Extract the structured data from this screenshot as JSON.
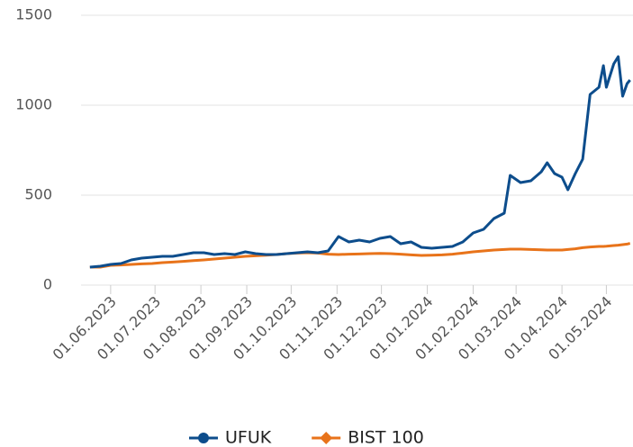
{
  "chart_data": {
    "type": "line",
    "x": [
      "2023-05-18",
      "2023-05-25",
      "2023-06-01",
      "2023-06-08",
      "2023-06-15",
      "2023-06-22",
      "2023-06-29",
      "2023-07-06",
      "2023-07-13",
      "2023-07-20",
      "2023-07-27",
      "2023-08-03",
      "2023-08-10",
      "2023-08-17",
      "2023-08-24",
      "2023-08-31",
      "2023-09-07",
      "2023-09-14",
      "2023-09-21",
      "2023-09-28",
      "2023-10-05",
      "2023-10-12",
      "2023-10-19",
      "2023-10-26",
      "2023-11-02",
      "2023-11-09",
      "2023-11-16",
      "2023-11-23",
      "2023-11-30",
      "2023-12-07",
      "2023-12-14",
      "2023-12-21",
      "2023-12-28",
      "2024-01-04",
      "2024-01-11",
      "2024-01-18",
      "2024-01-25",
      "2024-02-01",
      "2024-02-08",
      "2024-02-15",
      "2024-02-22",
      "2024-02-26",
      "2024-03-04",
      "2024-03-11",
      "2024-03-18",
      "2024-03-22",
      "2024-03-27",
      "2024-04-01",
      "2024-04-05",
      "2024-04-10",
      "2024-04-15",
      "2024-04-20",
      "2024-04-26",
      "2024-04-29",
      "2024-05-01",
      "2024-05-06",
      "2024-05-09",
      "2024-05-12",
      "2024-05-15",
      "2024-05-17"
    ],
    "series": [
      {
        "name": "UFUK",
        "color": "#0d4d8c",
        "marker": "circle",
        "values": [
          100,
          105,
          115,
          120,
          140,
          150,
          155,
          160,
          160,
          170,
          180,
          180,
          170,
          175,
          170,
          185,
          175,
          170,
          170,
          175,
          180,
          185,
          180,
          190,
          270,
          240,
          250,
          240,
          260,
          270,
          230,
          240,
          210,
          205,
          210,
          215,
          240,
          290,
          310,
          370,
          400,
          610,
          570,
          580,
          630,
          680,
          620,
          600,
          530,
          620,
          700,
          1060,
          1100,
          1220,
          1100,
          1230,
          1270,
          1050,
          1120,
          1140
        ]
      },
      {
        "name": "BIST 100",
        "color": "#e8731a",
        "marker": "diamond",
        "values": [
          100,
          100,
          110,
          112,
          115,
          118,
          120,
          125,
          128,
          132,
          136,
          140,
          145,
          150,
          155,
          160,
          163,
          166,
          170,
          175,
          178,
          180,
          178,
          172,
          170,
          172,
          173,
          175,
          176,
          175,
          172,
          168,
          165,
          166,
          168,
          172,
          178,
          185,
          190,
          195,
          198,
          200,
          200,
          198,
          196,
          195,
          195,
          195,
          198,
          202,
          208,
          212,
          215,
          215,
          216,
          220,
          222,
          225,
          228,
          232
        ]
      }
    ],
    "xlim": [
      "2023-05-12",
      "2024-05-19"
    ],
    "xticks": [
      {
        "value": "2023-06-01",
        "label": "01.06.2023"
      },
      {
        "value": "2023-07-01",
        "label": "01.07.2023"
      },
      {
        "value": "2023-08-01",
        "label": "01.08.2023"
      },
      {
        "value": "2023-09-01",
        "label": "01.09.2023"
      },
      {
        "value": "2023-10-01",
        "label": "01.10.2023"
      },
      {
        "value": "2023-11-01",
        "label": "01.11.2023"
      },
      {
        "value": "2023-12-01",
        "label": "01.12.2023"
      },
      {
        "value": "2024-01-01",
        "label": "01.01.2024"
      },
      {
        "value": "2024-02-01",
        "label": "01.02.2024"
      },
      {
        "value": "2024-03-01",
        "label": "01.03.2024"
      },
      {
        "value": "2024-04-01",
        "label": "01.04.2024"
      },
      {
        "value": "2024-05-01",
        "label": "01.05.2024"
      }
    ],
    "ylim": [
      0,
      1500
    ],
    "yticks": [
      0,
      500,
      1000,
      1500
    ],
    "grid": true,
    "legend": "bottom"
  }
}
